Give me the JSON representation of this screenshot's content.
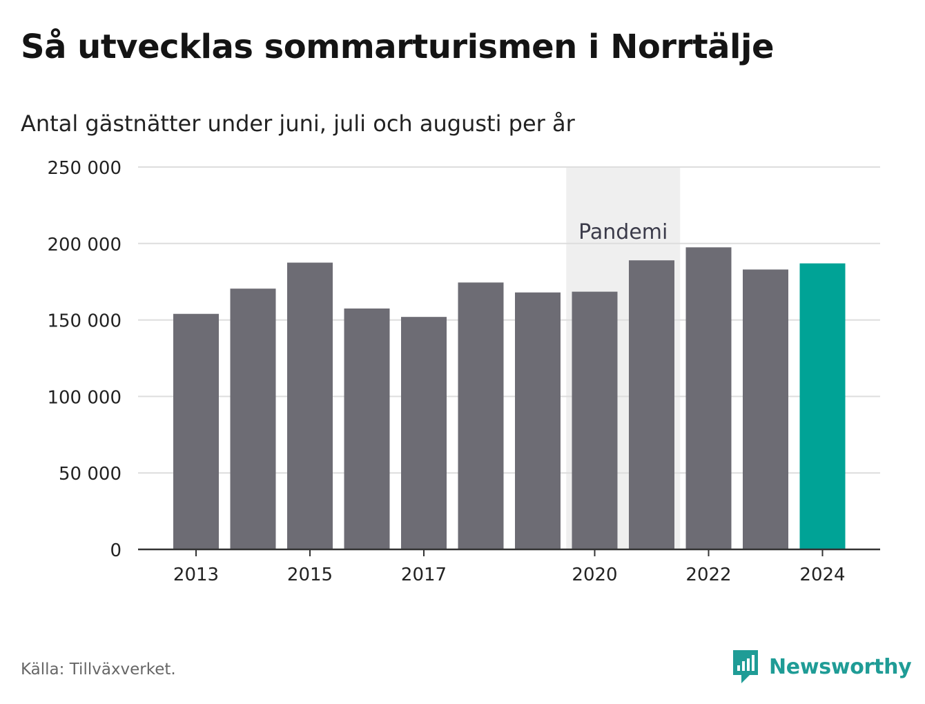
{
  "title": "Så utvecklas sommarturismen i Norrtälje",
  "subtitle": "Antal gästnätter under juni, juli och augusti per år",
  "source": "Källa: Tillväxverket.",
  "brand": {
    "name": "Newsworthy",
    "icon": "newsworthy-logo-icon",
    "color": "#1f9c96"
  },
  "colors": {
    "bar": "#6d6c74",
    "highlight": "#00a396",
    "band": "#efefef",
    "grid": "#dddddd",
    "axis": "#333333"
  },
  "chart_data": {
    "type": "bar",
    "x": [
      2013,
      2014,
      2015,
      2016,
      2017,
      2018,
      2019,
      2020,
      2021,
      2022,
      2023,
      2024
    ],
    "values": [
      154000,
      170500,
      187500,
      157500,
      152000,
      174500,
      168000,
      168500,
      189000,
      197500,
      183000,
      187000
    ],
    "highlight_x": 2024,
    "ylim": [
      0,
      250000
    ],
    "yticks": [
      0,
      50000,
      100000,
      150000,
      200000,
      250000
    ],
    "ytick_labels": [
      "0",
      "50 000",
      "100 000",
      "150 000",
      "200 000",
      "250 000"
    ],
    "xticks": [
      2013,
      2015,
      2017,
      2020,
      2022,
      2024
    ],
    "xtick_labels": [
      "2013",
      "2015",
      "2017",
      "2020",
      "2022",
      "2024"
    ],
    "grid": true,
    "annotation": {
      "label": "Pandemi",
      "x_from": 2019.5,
      "x_to": 2021.5
    }
  }
}
